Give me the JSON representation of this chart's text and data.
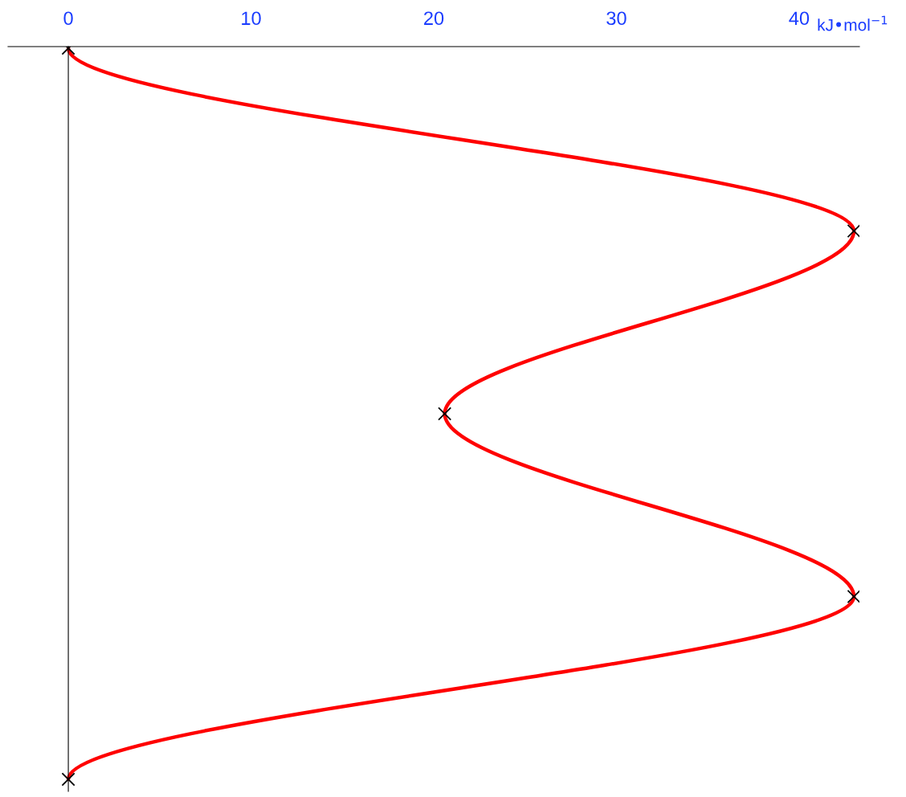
{
  "chart_data": {
    "type": "line",
    "orientation": "horizontal",
    "xlabel": "kJ•mol$^{−1}$",
    "categories": [
      null,
      null,
      null,
      null,
      null
    ],
    "series": [
      {
        "color": "#ff0000",
        "values": [
          0,
          43,
          20.6,
          43,
          0
        ]
      }
    ],
    "xlim": [
      -3.3,
      43.3
    ],
    "xticks": [
      0,
      10,
      20,
      30,
      40
    ],
    "marker": "cross"
  }
}
